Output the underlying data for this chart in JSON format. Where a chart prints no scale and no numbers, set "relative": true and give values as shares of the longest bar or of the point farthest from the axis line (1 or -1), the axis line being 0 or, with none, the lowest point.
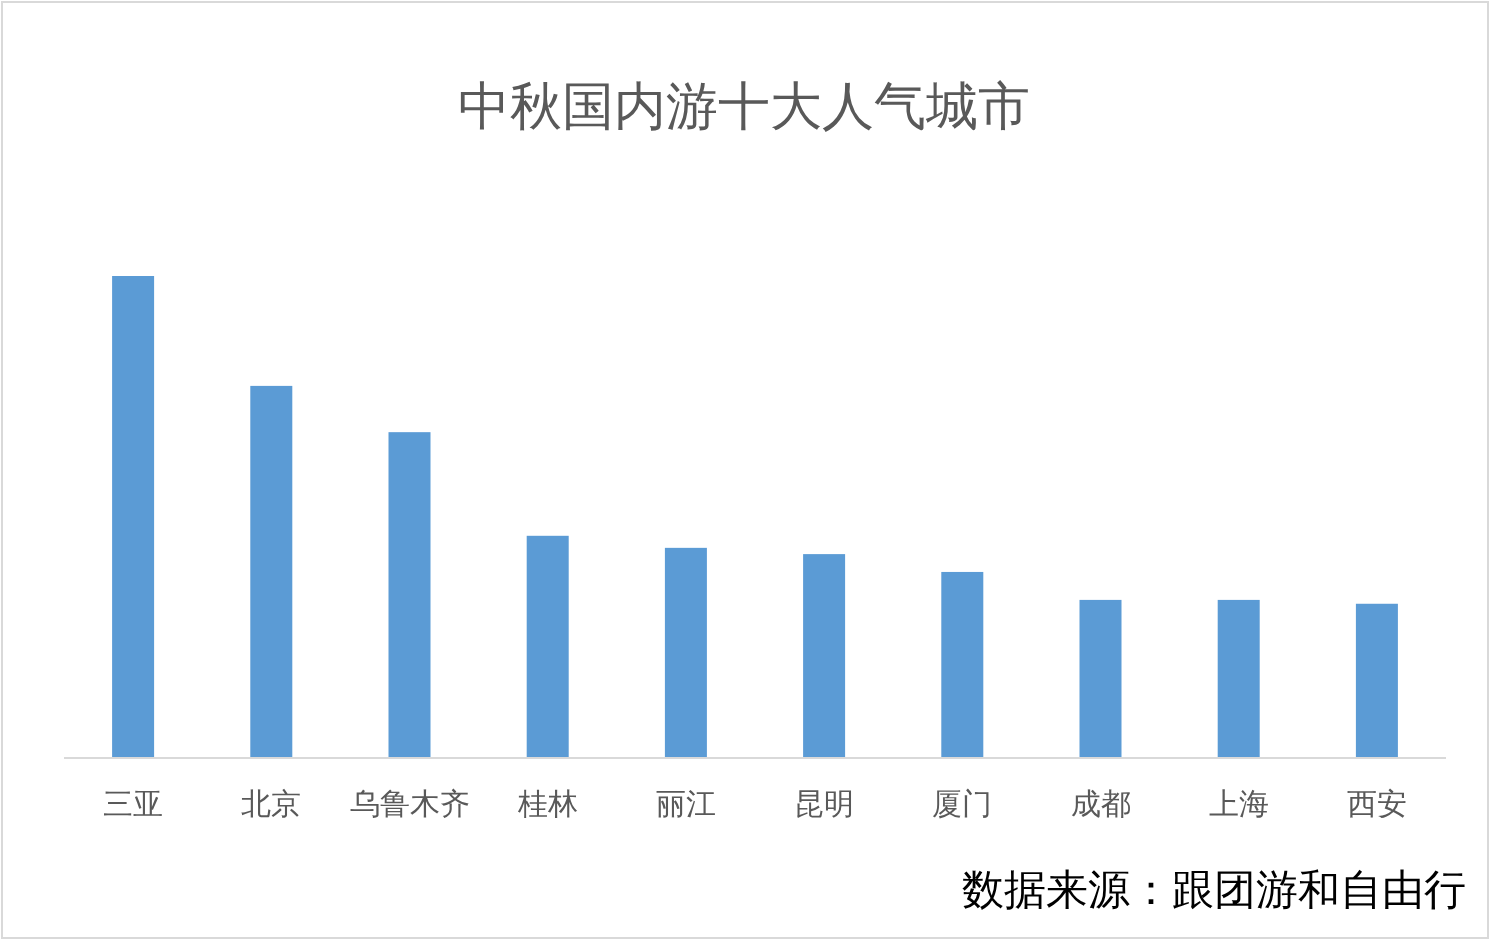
{
  "chart_data": {
    "type": "bar",
    "title": "中秋国内游十大人气城市",
    "categories": [
      "三亚",
      "北京",
      "乌鲁木齐",
      "桂林",
      "丽江",
      "昆明",
      "厦门",
      "成都",
      "上海",
      "西安"
    ],
    "values": [
      1,
      0.772,
      0.676,
      0.461,
      0.436,
      0.423,
      0.386,
      0.328,
      0.328,
      0.32
    ],
    "color": "#5b9bd5",
    "relative": true,
    "annotations": [
      "数据来源：跟团游和自由行"
    ]
  }
}
